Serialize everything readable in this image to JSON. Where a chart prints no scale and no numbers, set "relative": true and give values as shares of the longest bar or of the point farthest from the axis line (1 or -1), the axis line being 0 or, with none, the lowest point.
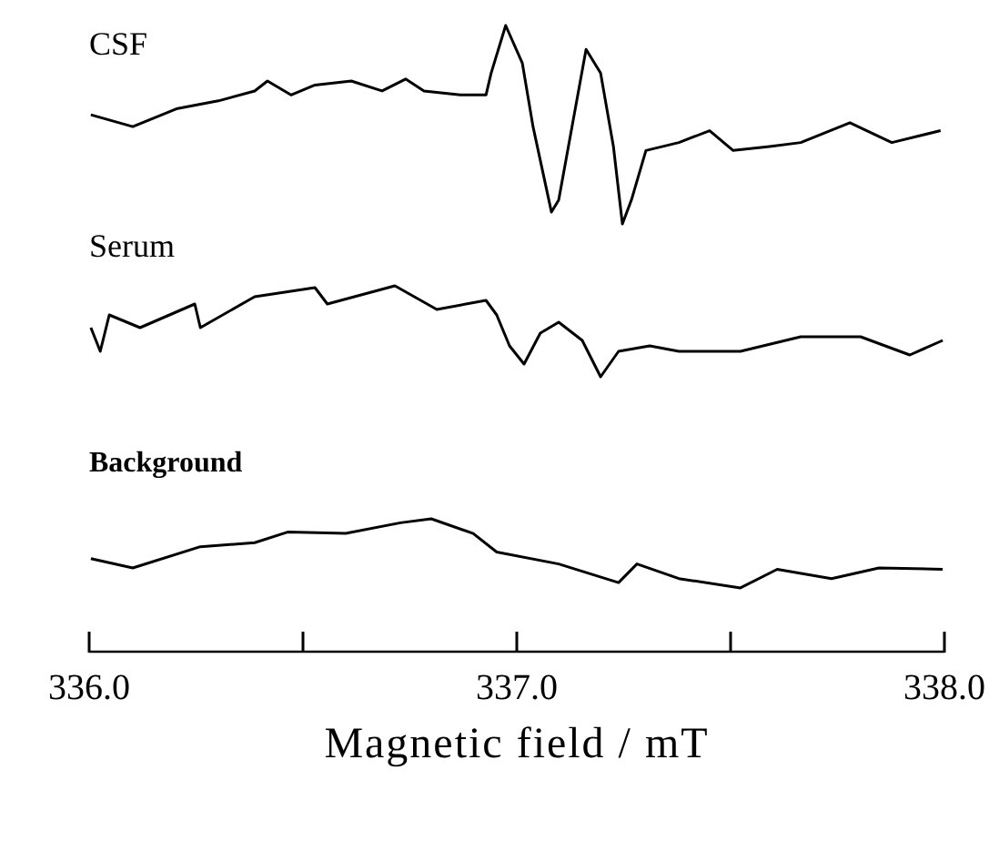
{
  "chart_data": [
    {
      "type": "line",
      "relative": true,
      "tick_labels": false,
      "xlim": [
        336,
        338
      ],
      "x": [
        336.004,
        336.102,
        336.204,
        336.302,
        336.387,
        336.417,
        336.472,
        336.528,
        336.613,
        336.685,
        336.74,
        336.783,
        336.868,
        336.928,
        336.94,
        336.974,
        337.013,
        337.038,
        337.081,
        337.098,
        337.162,
        337.196,
        337.226,
        337.247,
        337.268,
        337.302,
        337.379,
        337.451,
        337.506,
        337.591,
        337.664,
        337.779,
        337.877,
        337.991
      ],
      "series": [
        {
          "name": "CSF",
          "color": "#000000",
          "values": [
            0.55,
            0.49,
            0.58,
            0.62,
            0.67,
            0.72,
            0.65,
            0.7,
            0.72,
            0.67,
            0.73,
            0.67,
            0.65,
            0.65,
            0.76,
            1,
            0.81,
            0.49,
            0.06,
            0.12,
            0.88,
            0.76,
            0.39,
            0,
            0.12,
            0.37,
            0.41,
            0.47,
            0.37,
            0.39,
            0.41,
            0.51,
            0.41,
            0.47
          ]
        }
      ]
    },
    {
      "type": "line",
      "relative": true,
      "tick_labels": false,
      "xlim": [
        336,
        338
      ],
      "x": [
        336.004,
        336.026,
        336.047,
        336.119,
        336.247,
        336.26,
        336.387,
        336.528,
        336.557,
        336.715,
        336.813,
        336.928,
        336.953,
        336.983,
        337.017,
        337.055,
        337.098,
        337.153,
        337.196,
        337.238,
        337.311,
        337.379,
        337.523,
        337.664,
        337.804,
        337.919,
        337.996
      ],
      "series": [
        {
          "name": "Serum",
          "color": "#000000",
          "values": [
            0.54,
            0.28,
            0.68,
            0.54,
            0.8,
            0.54,
            0.88,
            0.98,
            0.8,
            1,
            0.74,
            0.84,
            0.68,
            0.34,
            0.14,
            0.48,
            0.6,
            0.4,
            0,
            0.28,
            0.34,
            0.28,
            0.28,
            0.44,
            0.44,
            0.24,
            0.4
          ]
        }
      ]
    },
    {
      "type": "line",
      "relative": true,
      "tick_labels": "x",
      "xlim": [
        336,
        338
      ],
      "xticks": [
        {
          "value": 336,
          "label": "336.0"
        },
        {
          "value": 336.5,
          "label": null
        },
        {
          "value": 337,
          "label": "337.0"
        },
        {
          "value": 337.5,
          "label": null
        },
        {
          "value": 338,
          "label": "338.0"
        }
      ],
      "xlabel": "Magnetic field / mT",
      "x": [
        336.004,
        336.102,
        336.26,
        336.387,
        336.464,
        336.6,
        336.728,
        336.8,
        336.898,
        336.953,
        337.098,
        337.238,
        337.281,
        337.379,
        337.523,
        337.609,
        337.736,
        337.847,
        337.996
      ],
      "series": [
        {
          "name": "Background",
          "color": "#000000",
          "values": [
            0.7,
            0.63,
            0.79,
            0.82,
            0.9,
            0.89,
            0.97,
            1,
            0.89,
            0.75,
            0.66,
            0.52,
            0.66,
            0.55,
            0.48,
            0.62,
            0.55,
            0.63,
            0.62
          ]
        }
      ]
    }
  ]
}
